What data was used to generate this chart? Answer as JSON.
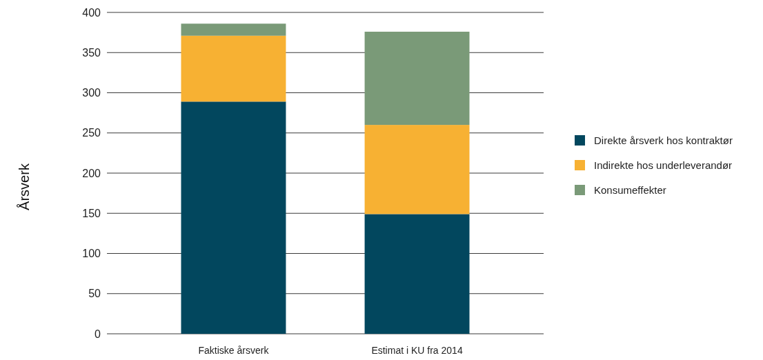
{
  "chart_data": {
    "type": "bar",
    "ylabel": "Årsverk",
    "categories": [
      "Faktiske årsverk",
      "Estimat i KU fra 2014"
    ],
    "series": [
      {
        "name": "Direkte årsverk hos kontraktør",
        "color": "#02475e",
        "values": [
          289,
          149
        ]
      },
      {
        "name": "Indirekte hos underleverandør",
        "color": "#f7b133",
        "values": [
          82,
          111
        ]
      },
      {
        "name": "Konsumeffekter",
        "color": "#7a9a78",
        "values": [
          15,
          116
        ]
      }
    ],
    "stacked": true,
    "ylim": [
      0,
      400
    ],
    "yticks": [
      0,
      50,
      100,
      150,
      200,
      250,
      300,
      350,
      400
    ],
    "grid": "y",
    "legend": "right"
  }
}
